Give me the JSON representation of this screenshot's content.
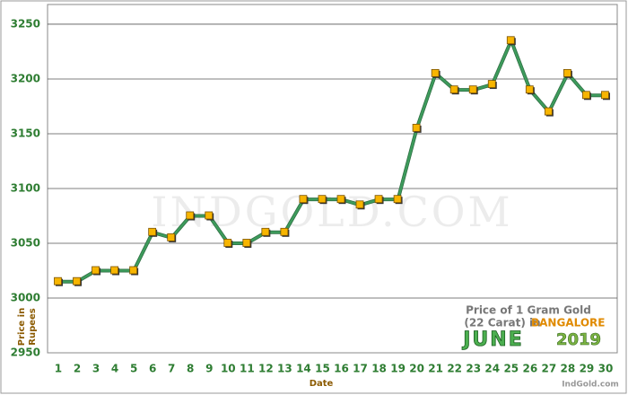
{
  "chart_data": {
    "type": "line",
    "watermark": "INDGOLD.COM",
    "title_lines": [
      "Price of 1 Gram Gold",
      "(22 Carat) in"
    ],
    "city": "BANGALORE",
    "month": "JUNE",
    "year": "2019",
    "source": "IndGold.com",
    "xlabel": "Date",
    "ylabel": [
      "Price in",
      "Rupees"
    ],
    "x": [
      1,
      2,
      3,
      4,
      5,
      6,
      7,
      8,
      9,
      10,
      11,
      12,
      13,
      14,
      15,
      16,
      17,
      18,
      19,
      20,
      21,
      22,
      23,
      24,
      25,
      26,
      27,
      28,
      29,
      30
    ],
    "series": [
      {
        "color": "#3d9b5c",
        "marker_color": "#f7b500",
        "values": [
          3015,
          3015,
          3025,
          3025,
          3025,
          3060,
          3055,
          3075,
          3075,
          3050,
          3050,
          3060,
          3060,
          3090,
          3090,
          3090,
          3085,
          3090,
          3090,
          3155,
          3205,
          3190,
          3190,
          3195,
          3235,
          3190,
          3170,
          3205,
          3185,
          3185
        ]
      }
    ],
    "xlim": [
      0.43,
      30.62
    ],
    "ylim": [
      2950,
      3268
    ],
    "yticks": [
      2950,
      3000,
      3050,
      3100,
      3150,
      3200,
      3250
    ],
    "grid": true
  }
}
